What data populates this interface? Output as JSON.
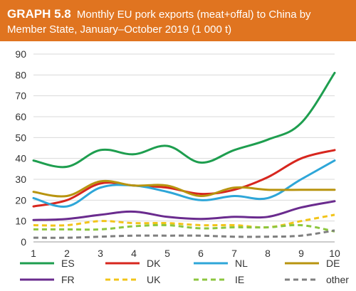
{
  "header": {
    "tag": "GRAPH 5.8",
    "title": "Monthly EU pork exports (meat+offal) to China by Member State, January–October 2019 (1 000 t)"
  },
  "colors": {
    "header_bg": "#e07420",
    "ES": "#1e9e4f",
    "DK": "#d7261e",
    "NL": "#2ea6d8",
    "DE": "#b8940f",
    "FR": "#6a2b8e",
    "UK": "#f2c419",
    "IE": "#8cc63f",
    "other": "#7f7f7f"
  },
  "chart_data": {
    "type": "line",
    "x": [
      1,
      2,
      3,
      4,
      5,
      6,
      7,
      8,
      9,
      10
    ],
    "ylim": [
      0,
      90
    ],
    "yticks": [
      0,
      10,
      20,
      30,
      40,
      50,
      60,
      70,
      80,
      90
    ],
    "xticks": [
      "1",
      "2",
      "3",
      "4",
      "5",
      "6",
      "7",
      "8",
      "9",
      "10"
    ],
    "grid": true,
    "legend_position": "bottom",
    "series": [
      {
        "name": "ES",
        "style": "solid",
        "values": [
          39,
          36,
          44,
          42,
          46,
          38,
          44,
          49,
          57,
          81
        ]
      },
      {
        "name": "DK",
        "style": "solid",
        "values": [
          17,
          20,
          28,
          27,
          26,
          23,
          25,
          31,
          40,
          44
        ]
      },
      {
        "name": "NL",
        "style": "solid",
        "values": [
          21,
          17,
          26,
          27,
          24,
          20,
          22,
          21,
          30,
          39
        ]
      },
      {
        "name": "DE",
        "style": "solid",
        "values": [
          24,
          22,
          29,
          27,
          27,
          22,
          26,
          25,
          25,
          25
        ]
      },
      {
        "name": "FR",
        "style": "solid",
        "values": [
          10.5,
          11,
          13,
          14.5,
          12,
          11,
          12,
          12,
          16.5,
          19.5
        ]
      },
      {
        "name": "UK",
        "style": "dashed",
        "values": [
          8,
          8,
          10,
          9,
          9,
          8,
          8,
          7,
          10,
          13
        ]
      },
      {
        "name": "IE",
        "style": "dashed",
        "values": [
          6,
          6,
          6,
          7.5,
          8,
          6.5,
          7,
          7,
          8,
          5
        ]
      },
      {
        "name": "other",
        "style": "dashed",
        "values": [
          2,
          2,
          2.5,
          3,
          3,
          3,
          2.5,
          2.5,
          3,
          5.5
        ]
      }
    ]
  }
}
